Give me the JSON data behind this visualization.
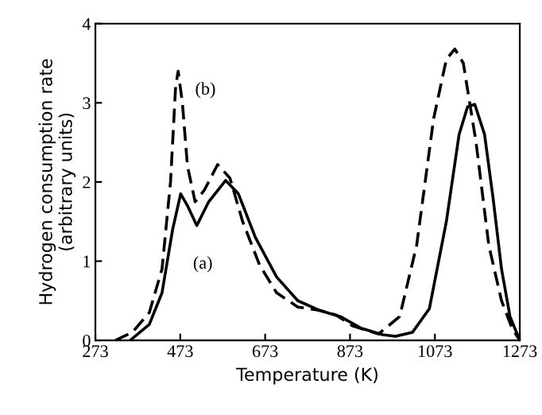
{
  "chart_data": {
    "type": "line",
    "xlabel": "Temperature (K)",
    "ylabel": "Hydrogen consumption rate\n(arbitrary units)",
    "xlim": [
      273,
      1273
    ],
    "xticks": [
      273,
      473,
      673,
      873,
      1073,
      1273
    ],
    "ylim": [
      0,
      4
    ],
    "yticks": [
      0,
      1,
      2,
      3,
      4
    ],
    "grid": false,
    "legend": false,
    "marker": "none",
    "series": [
      {
        "color": "#000000",
        "line_style": "solid",
        "x": [
          355,
          400,
          430,
          455,
          474,
          490,
          512,
          540,
          580,
          610,
          650,
          700,
          750,
          800,
          850,
          900,
          950,
          980,
          1020,
          1060,
          1100,
          1130,
          1150,
          1167,
          1190,
          1210,
          1230,
          1250,
          1273
        ],
        "values": [
          0,
          0.2,
          0.6,
          1.4,
          1.85,
          1.7,
          1.45,
          1.75,
          2.02,
          1.85,
          1.3,
          0.8,
          0.5,
          0.38,
          0.3,
          0.15,
          0.07,
          0.05,
          0.1,
          0.4,
          1.5,
          2.6,
          2.95,
          2.98,
          2.6,
          1.8,
          0.9,
          0.3,
          0
        ]
      },
      {
        "color": "#000000",
        "line_style": "dashed",
        "x": [
          320,
          360,
          400,
          430,
          450,
          462,
          468,
          478,
          490,
          508,
          530,
          561,
          590,
          620,
          660,
          700,
          750,
          800,
          840,
          880,
          940,
          990,
          1030,
          1070,
          1100,
          1120,
          1140,
          1170,
          1200,
          1230,
          1255,
          1273
        ],
        "values": [
          0,
          0.1,
          0.35,
          0.9,
          2.0,
          3.2,
          3.4,
          3.0,
          2.2,
          1.75,
          1.9,
          2.22,
          2.05,
          1.5,
          0.95,
          0.6,
          0.42,
          0.38,
          0.32,
          0.18,
          0.08,
          0.3,
          1.2,
          2.8,
          3.55,
          3.68,
          3.5,
          2.5,
          1.2,
          0.5,
          0.15,
          0
        ]
      }
    ],
    "annotations": [
      "(a)",
      "(b)"
    ]
  }
}
